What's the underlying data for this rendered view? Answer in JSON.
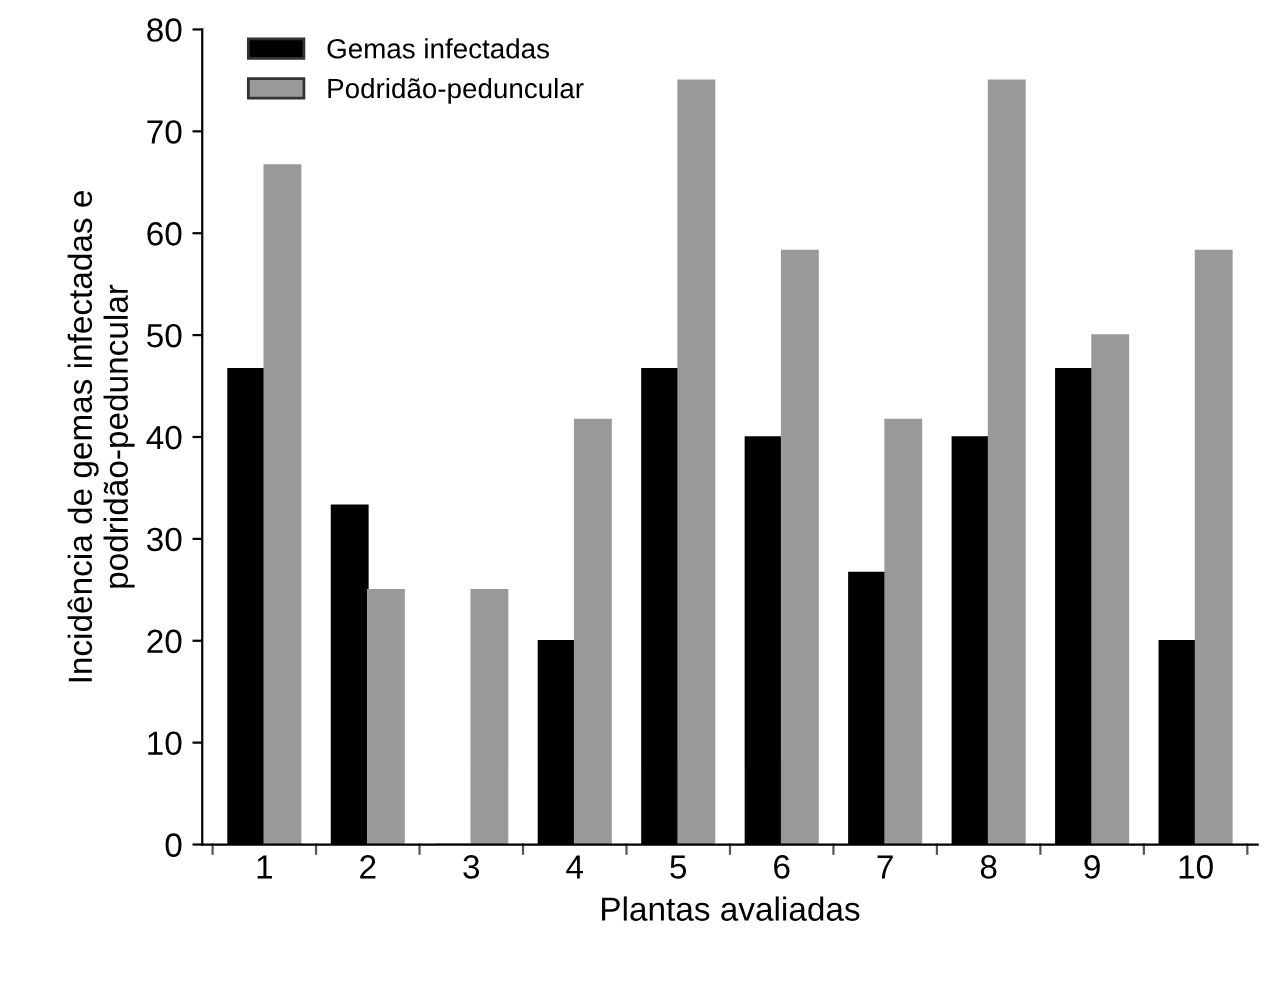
{
  "chart_data": {
    "type": "bar",
    "xlabel": "Plantas avaliadas",
    "ylabel": "Incidência de gemas infectadas e\npodridão-peduncular",
    "categories": [
      "1",
      "2",
      "3",
      "4",
      "5",
      "6",
      "7",
      "8",
      "9",
      "10"
    ],
    "series": [
      {
        "name": "Gemas infectadas",
        "color": "#000000",
        "values": [
          46.7,
          33.3,
          0,
          20,
          46.7,
          40,
          26.7,
          40,
          46.7,
          20
        ]
      },
      {
        "name": "Podridão-peduncular",
        "color": "#999999",
        "values": [
          66.7,
          25,
          25,
          41.7,
          75,
          58.3,
          41.7,
          75,
          50,
          58.3
        ]
      }
    ],
    "ylim": [
      0,
      80
    ],
    "yticks": [
      0,
      10,
      20,
      30,
      40,
      50,
      60,
      70,
      80
    ],
    "grid": false,
    "legend": "top left"
  }
}
